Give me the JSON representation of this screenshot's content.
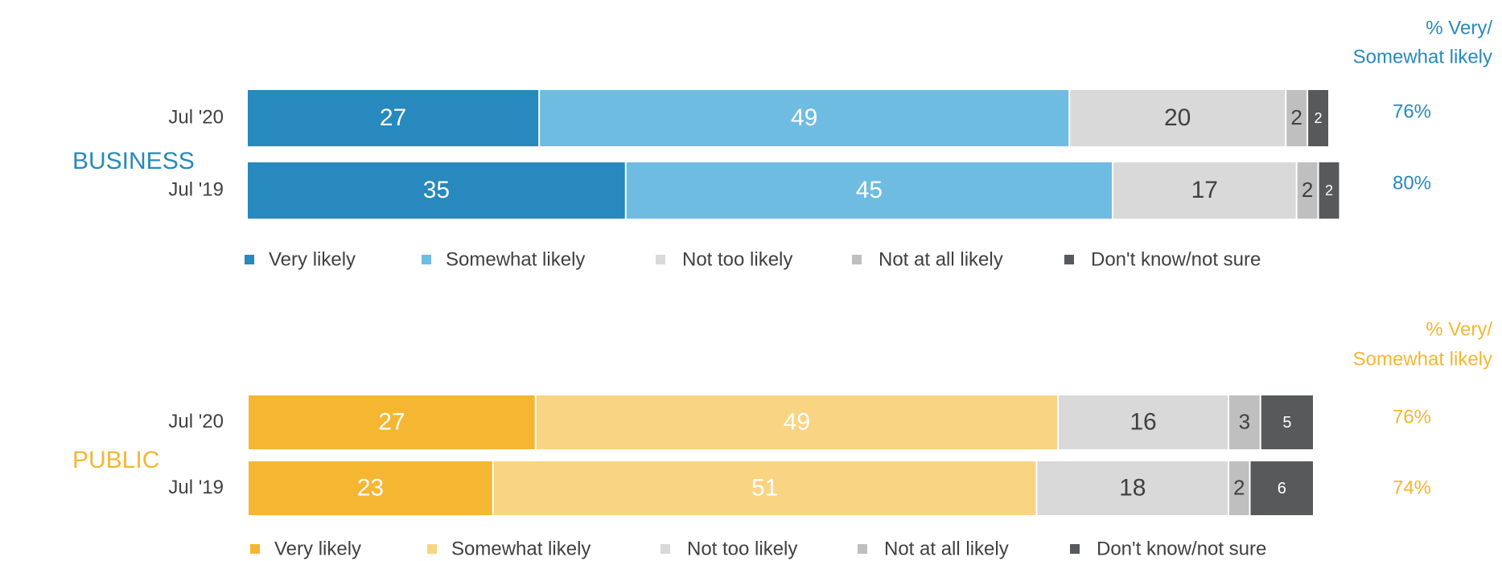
{
  "colors": {
    "business_very": "#2789BD",
    "business_somewhat": "#6FBCE2",
    "public_very": "#F5B632",
    "public_somewhat": "#F9D483",
    "not_too": "#D9D9D9",
    "not_at_all": "#BFBFBF",
    "dont_know": "#58595B",
    "business_text": "#2789BD",
    "public_text": "#F5B632"
  },
  "chart_data": [
    {
      "type": "bar",
      "orientation": "horizontal",
      "stacked": true,
      "group_label": "BUSINESS",
      "categories": [
        "Jul '20",
        "Jul '19"
      ],
      "series": [
        {
          "name": "Very likely",
          "values": [
            27,
            35
          ]
        },
        {
          "name": "Somewhat likely",
          "values": [
            49,
            45
          ]
        },
        {
          "name": "Not too likely",
          "values": [
            20,
            17
          ]
        },
        {
          "name": "Not at all likely",
          "values": [
            2,
            2
          ]
        },
        {
          "name": "Don't know/not sure",
          "values": [
            2,
            2
          ]
        }
      ],
      "net_header": [
        "% Very/",
        "Somewhat likely"
      ],
      "net_values": [
        "76%",
        "80%"
      ],
      "legend_position": "bottom",
      "grid": false
    },
    {
      "type": "bar",
      "orientation": "horizontal",
      "stacked": true,
      "group_label": "PUBLIC",
      "categories": [
        "Jul '20",
        "Jul '19"
      ],
      "series": [
        {
          "name": "Very likely",
          "values": [
            27,
            23
          ]
        },
        {
          "name": "Somewhat likely",
          "values": [
            49,
            51
          ]
        },
        {
          "name": "Not too likely",
          "values": [
            16,
            18
          ]
        },
        {
          "name": "Not at all likely",
          "values": [
            3,
            2
          ]
        },
        {
          "name": "Don't know/not sure",
          "values": [
            5,
            6
          ]
        }
      ],
      "net_header": [
        "% Very/",
        "Somewhat likely"
      ],
      "net_values": [
        "76%",
        "74%"
      ],
      "legend_position": "bottom",
      "grid": false
    }
  ]
}
